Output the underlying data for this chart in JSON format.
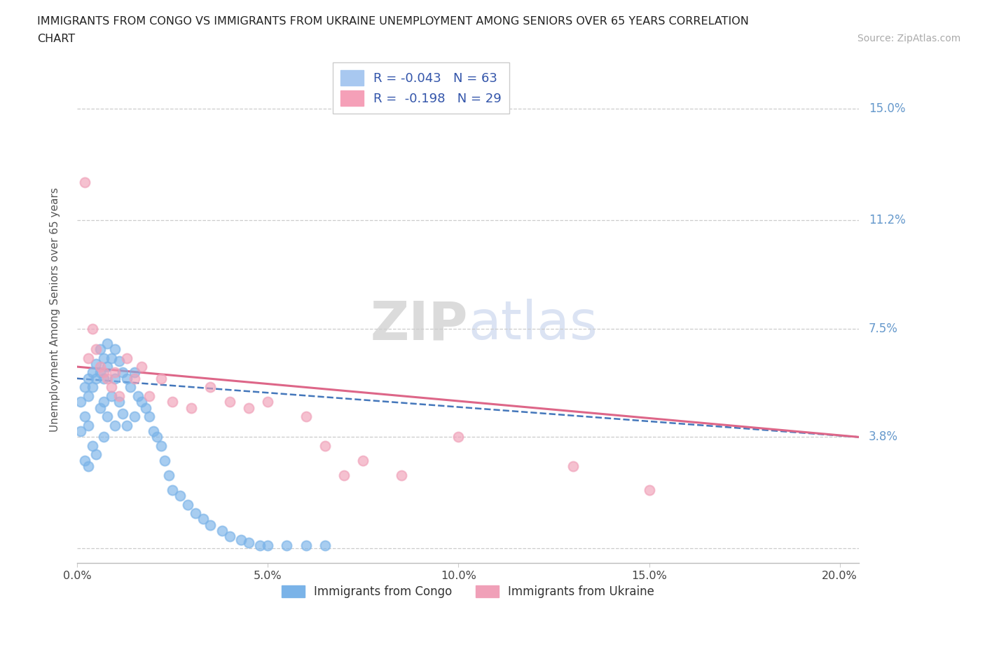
{
  "title_line1": "IMMIGRANTS FROM CONGO VS IMMIGRANTS FROM UKRAINE UNEMPLOYMENT AMONG SENIORS OVER 65 YEARS CORRELATION",
  "title_line2": "CHART",
  "source": "Source: ZipAtlas.com",
  "ylabel": "Unemployment Among Seniors over 65 years",
  "xlim": [
    0.0,
    0.205
  ],
  "ylim": [
    -0.005,
    0.168
  ],
  "yticks": [
    0.0,
    0.038,
    0.075,
    0.112,
    0.15
  ],
  "ytick_labels": [
    "",
    "3.8%",
    "7.5%",
    "11.2%",
    "15.0%"
  ],
  "xticks": [
    0.0,
    0.05,
    0.1,
    0.15,
    0.2
  ],
  "xtick_labels": [
    "0.0%",
    "5.0%",
    "10.0%",
    "15.0%",
    "20.0%"
  ],
  "legend_entries": [
    {
      "label": "R = -0.043   N = 63",
      "color": "#a8c8f0"
    },
    {
      "label": "R =  -0.198   N = 29",
      "color": "#f5a0b8"
    }
  ],
  "congo_color": "#7ab3e8",
  "ukraine_color": "#f0a0b8",
  "congo_line_color": "#4477bb",
  "ukraine_line_color": "#dd6688",
  "watermark_zip": "ZIP",
  "watermark_atlas": "atlas",
  "background_color": "#ffffff",
  "grid_color": "#cccccc",
  "axis_label_color": "#6699cc",
  "congo_scatter_x": [
    0.001,
    0.001,
    0.002,
    0.002,
    0.002,
    0.003,
    0.003,
    0.003,
    0.003,
    0.004,
    0.004,
    0.004,
    0.005,
    0.005,
    0.005,
    0.006,
    0.006,
    0.006,
    0.007,
    0.007,
    0.007,
    0.007,
    0.008,
    0.008,
    0.008,
    0.009,
    0.009,
    0.01,
    0.01,
    0.01,
    0.011,
    0.011,
    0.012,
    0.012,
    0.013,
    0.013,
    0.014,
    0.015,
    0.015,
    0.016,
    0.017,
    0.018,
    0.019,
    0.02,
    0.021,
    0.022,
    0.023,
    0.024,
    0.025,
    0.027,
    0.029,
    0.031,
    0.033,
    0.035,
    0.038,
    0.04,
    0.043,
    0.045,
    0.048,
    0.05,
    0.055,
    0.06,
    0.065
  ],
  "congo_scatter_y": [
    0.05,
    0.04,
    0.055,
    0.045,
    0.03,
    0.058,
    0.052,
    0.042,
    0.028,
    0.06,
    0.055,
    0.035,
    0.063,
    0.058,
    0.032,
    0.068,
    0.06,
    0.048,
    0.065,
    0.058,
    0.05,
    0.038,
    0.07,
    0.062,
    0.045,
    0.065,
    0.052,
    0.068,
    0.058,
    0.042,
    0.064,
    0.05,
    0.06,
    0.046,
    0.058,
    0.042,
    0.055,
    0.06,
    0.045,
    0.052,
    0.05,
    0.048,
    0.045,
    0.04,
    0.038,
    0.035,
    0.03,
    0.025,
    0.02,
    0.018,
    0.015,
    0.012,
    0.01,
    0.008,
    0.006,
    0.004,
    0.003,
    0.002,
    0.001,
    0.001,
    0.001,
    0.001,
    0.001
  ],
  "ukraine_scatter_x": [
    0.002,
    0.003,
    0.004,
    0.005,
    0.006,
    0.007,
    0.008,
    0.009,
    0.01,
    0.011,
    0.013,
    0.015,
    0.017,
    0.019,
    0.022,
    0.025,
    0.03,
    0.035,
    0.04,
    0.045,
    0.05,
    0.06,
    0.065,
    0.07,
    0.075,
    0.085,
    0.1,
    0.13,
    0.15
  ],
  "ukraine_scatter_y": [
    0.125,
    0.065,
    0.075,
    0.068,
    0.062,
    0.06,
    0.058,
    0.055,
    0.06,
    0.052,
    0.065,
    0.058,
    0.062,
    0.052,
    0.058,
    0.05,
    0.048,
    0.055,
    0.05,
    0.048,
    0.05,
    0.045,
    0.035,
    0.025,
    0.03,
    0.025,
    0.038,
    0.028,
    0.02
  ],
  "congo_trend_x": [
    0.0,
    0.205
  ],
  "congo_trend_y": [
    0.058,
    0.038
  ],
  "ukraine_trend_x": [
    0.0,
    0.205
  ],
  "ukraine_trend_y": [
    0.062,
    0.038
  ]
}
